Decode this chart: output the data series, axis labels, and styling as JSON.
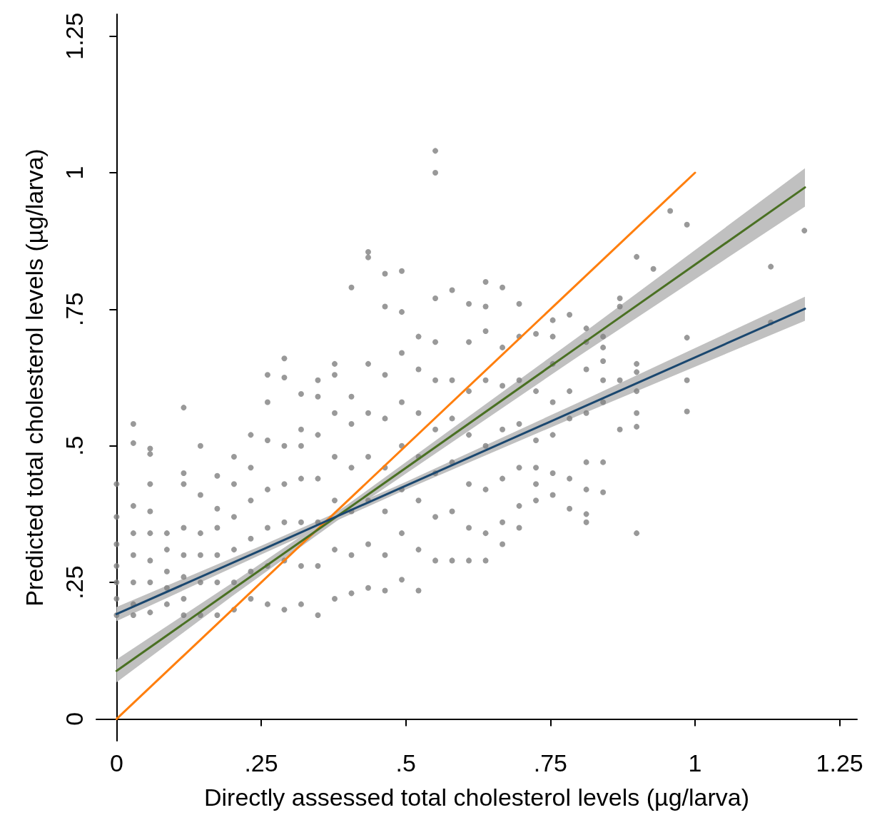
{
  "chart_data": {
    "type": "scatter",
    "xlabel": "Directly assessed total cholesterol levels (µg/larva)",
    "ylabel": "Predicted total cholesterol levels (µg/larva)",
    "xlim": [
      -0.035,
      1.28
    ],
    "ylim": [
      -0.04,
      1.29
    ],
    "xticks": [
      {
        "value": 0,
        "label": "0"
      },
      {
        "value": 0.25,
        "label": ".25"
      },
      {
        "value": 0.5,
        "label": ".5"
      },
      {
        "value": 0.75,
        "label": ".75"
      },
      {
        "value": 1,
        "label": "1"
      },
      {
        "value": 1.25,
        "label": "1.25"
      }
    ],
    "yticks": [
      {
        "value": 0,
        "label": "0"
      },
      {
        "value": 0.25,
        "label": ".25"
      },
      {
        "value": 0.5,
        "label": ".5"
      },
      {
        "value": 0.75,
        "label": ".75"
      },
      {
        "value": 1,
        "label": "1"
      },
      {
        "value": 1.25,
        "label": "1.25"
      }
    ],
    "grid": false,
    "marker": "circle",
    "series": [
      {
        "color": "#808080",
        "x": [
          0,
          0,
          0,
          0,
          0,
          0,
          0,
          0.029,
          0.029,
          0.029,
          0.029,
          0.029,
          0.029,
          0.029,
          0.029,
          0.058,
          0.058,
          0.058,
          0.058,
          0.058,
          0.058,
          0.058,
          0.058,
          0.087,
          0.087,
          0.087,
          0.087,
          0.087,
          0.116,
          0.116,
          0.116,
          0.116,
          0.116,
          0.116,
          0.116,
          0.116,
          0.145,
          0.145,
          0.145,
          0.145,
          0.145,
          0.145,
          0.174,
          0.174,
          0.174,
          0.174,
          0.174,
          0.174,
          0.203,
          0.203,
          0.203,
          0.203,
          0.203,
          0.203,
          0.232,
          0.232,
          0.232,
          0.232,
          0.232,
          0.232,
          0.261,
          0.261,
          0.261,
          0.261,
          0.261,
          0.261,
          0.261,
          0.29,
          0.29,
          0.29,
          0.29,
          0.29,
          0.29,
          0.29,
          0.319,
          0.319,
          0.319,
          0.319,
          0.319,
          0.319,
          0.319,
          0.348,
          0.348,
          0.348,
          0.348,
          0.348,
          0.348,
          0.348,
          0.377,
          0.377,
          0.377,
          0.377,
          0.377,
          0.377,
          0.377,
          0.406,
          0.406,
          0.406,
          0.406,
          0.406,
          0.406,
          0.406,
          0.435,
          0.435,
          0.435,
          0.435,
          0.435,
          0.435,
          0.435,
          0.435,
          0.464,
          0.464,
          0.464,
          0.464,
          0.464,
          0.464,
          0.464,
          0.464,
          0.493,
          0.493,
          0.493,
          0.493,
          0.493,
          0.493,
          0.493,
          0.493,
          0.522,
          0.522,
          0.522,
          0.522,
          0.522,
          0.522,
          0.522,
          0.551,
          0.551,
          0.551,
          0.551,
          0.551,
          0.551,
          0.551,
          0.551,
          0.551,
          0.58,
          0.58,
          0.58,
          0.58,
          0.58,
          0.58,
          0.609,
          0.609,
          0.609,
          0.609,
          0.609,
          0.609,
          0.609,
          0.638,
          0.638,
          0.638,
          0.638,
          0.638,
          0.638,
          0.638,
          0.638,
          0.667,
          0.667,
          0.667,
          0.667,
          0.667,
          0.667,
          0.667,
          0.696,
          0.696,
          0.696,
          0.696,
          0.696,
          0.696,
          0.696,
          0.725,
          0.725,
          0.725,
          0.725,
          0.725,
          0.725,
          0.754,
          0.754,
          0.754,
          0.754,
          0.754,
          0.754,
          0.754,
          0.783,
          0.783,
          0.783,
          0.783,
          0.783,
          0.812,
          0.812,
          0.812,
          0.812,
          0.812,
          0.812,
          0.812,
          0.812,
          0.841,
          0.841,
          0.841,
          0.841,
          0.841,
          0.841,
          0.841,
          0.87,
          0.87,
          0.87,
          0.87,
          0.899,
          0.899,
          0.899,
          0.899,
          0.899,
          0.899,
          0.899,
          0.928,
          0.957,
          0.986,
          0.986,
          0.986,
          0.986,
          1.131,
          1.131,
          1.189
        ],
        "values": [
          0.43,
          0.37,
          0.32,
          0.28,
          0.25,
          0.22,
          0.19,
          0.54,
          0.505,
          0.39,
          0.34,
          0.3,
          0.25,
          0.21,
          0.19,
          0.495,
          0.485,
          0.43,
          0.38,
          0.34,
          0.29,
          0.25,
          0.195,
          0.34,
          0.31,
          0.27,
          0.24,
          0.21,
          0.57,
          0.45,
          0.43,
          0.35,
          0.3,
          0.26,
          0.22,
          0.19,
          0.5,
          0.41,
          0.34,
          0.3,
          0.25,
          0.19,
          0.445,
          0.385,
          0.35,
          0.3,
          0.25,
          0.19,
          0.48,
          0.43,
          0.37,
          0.31,
          0.25,
          0.2,
          0.52,
          0.46,
          0.4,
          0.33,
          0.27,
          0.22,
          0.63,
          0.58,
          0.51,
          0.42,
          0.35,
          0.28,
          0.21,
          0.66,
          0.625,
          0.5,
          0.43,
          0.36,
          0.29,
          0.2,
          0.595,
          0.53,
          0.5,
          0.44,
          0.36,
          0.28,
          0.21,
          0.62,
          0.59,
          0.52,
          0.44,
          0.36,
          0.28,
          0.19,
          0.65,
          0.63,
          0.56,
          0.48,
          0.4,
          0.31,
          0.22,
          0.79,
          0.59,
          0.54,
          0.46,
          0.38,
          0.3,
          0.23,
          0.855,
          0.845,
          0.65,
          0.56,
          0.48,
          0.4,
          0.32,
          0.24,
          0.815,
          0.755,
          0.63,
          0.55,
          0.46,
          0.38,
          0.3,
          0.235,
          0.82,
          0.745,
          0.67,
          0.58,
          0.5,
          0.42,
          0.34,
          0.255,
          0.7,
          0.64,
          0.56,
          0.48,
          0.4,
          0.31,
          0.235,
          1.04,
          1.0,
          0.77,
          0.69,
          0.62,
          0.53,
          0.45,
          0.37,
          0.29,
          0.785,
          0.62,
          0.55,
          0.47,
          0.38,
          0.29,
          0.76,
          0.69,
          0.6,
          0.52,
          0.43,
          0.35,
          0.29,
          0.8,
          0.755,
          0.71,
          0.62,
          0.5,
          0.42,
          0.34,
          0.29,
          0.79,
          0.68,
          0.61,
          0.53,
          0.44,
          0.36,
          0.32,
          0.76,
          0.7,
          0.62,
          0.54,
          0.46,
          0.39,
          0.35,
          0.705,
          0.6,
          0.51,
          0.46,
          0.43,
          0.4,
          0.73,
          0.7,
          0.65,
          0.58,
          0.52,
          0.45,
          0.41,
          0.74,
          0.6,
          0.55,
          0.44,
          0.385,
          0.715,
          0.69,
          0.64,
          0.56,
          0.47,
          0.42,
          0.375,
          0.36,
          0.7,
          0.68,
          0.655,
          0.62,
          0.58,
          0.47,
          0.415,
          0.77,
          0.755,
          0.62,
          0.53,
          0.846,
          0.65,
          0.635,
          0.6,
          0.56,
          0.535,
          0.34,
          0.824,
          0.93,
          0.905,
          0.698,
          0.62,
          0.563,
          0.828,
          0.726,
          0.894
        ]
      },
      {
        "type": "line",
        "color": "#ff7f0e",
        "marker": "none",
        "x": [
          0,
          1
        ],
        "values": [
          0,
          1
        ]
      },
      {
        "type": "line",
        "color": "#4a7023",
        "marker": "none",
        "x": [
          0,
          0.2,
          0.4,
          0.8,
          1.19
        ],
        "values": [
          0.088,
          0.237,
          0.385,
          0.683,
          0.973
        ],
        "lower": [
          0.067,
          0.225,
          0.377,
          0.665,
          0.938
        ],
        "upper": [
          0.109,
          0.249,
          0.393,
          0.701,
          1.008
        ]
      },
      {
        "type": "line",
        "color": "#1a476f",
        "marker": "none",
        "x": [
          0,
          0.25,
          0.5,
          0.8,
          1.19
        ],
        "values": [
          0.192,
          0.309,
          0.427,
          0.568,
          0.751
        ],
        "lower": [
          0.179,
          0.301,
          0.42,
          0.556,
          0.729
        ],
        "upper": [
          0.205,
          0.317,
          0.434,
          0.58,
          0.773
        ]
      }
    ]
  }
}
